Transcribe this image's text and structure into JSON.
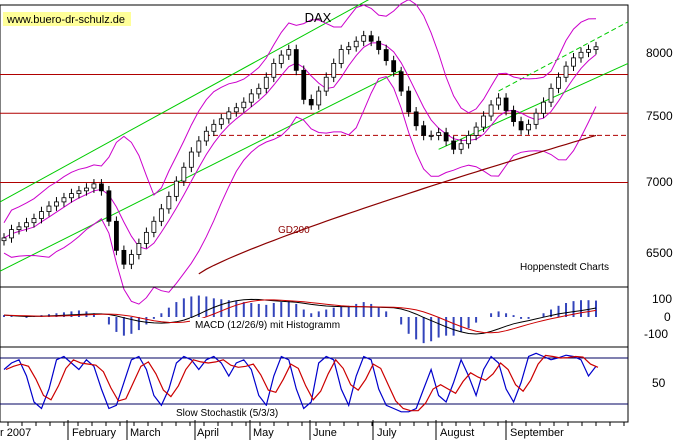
{
  "header": {
    "website": "www.buero-dr-schulz.de"
  },
  "chart_data": [
    {
      "type": "candlestick",
      "title": "DAX",
      "ylim": [
        6300,
        8300
      ],
      "y_ticks": [
        "8000",
        "7500",
        "7000",
        "6500"
      ],
      "x_labels": [
        "r 2007",
        "February",
        "March",
        "April",
        "May",
        "June",
        "July",
        "August",
        "September"
      ],
      "annotations": {
        "gd200": "GD200",
        "source": "Hoppenstedt Charts"
      },
      "horizontal_levels": [
        {
          "value": 7820,
          "color": "#b00000",
          "style": "solid"
        },
        {
          "value": 7540,
          "color": "#b00000",
          "style": "solid"
        },
        {
          "value": 7380,
          "color": "#b00000",
          "style": "dashed"
        },
        {
          "value": 7040,
          "color": "#b00000",
          "style": "solid"
        }
      ],
      "series": [
        {
          "values": [
            6640,
            6700,
            6720,
            6750,
            6780,
            6830,
            6870,
            6900,
            6930,
            6960,
            6980,
            7000,
            7030,
            6980,
            6760,
            6550,
            6450,
            6520,
            6600,
            6680,
            6760,
            6850,
            6940,
            7050,
            7150,
            7260,
            7340,
            7410,
            7460,
            7500,
            7550,
            7580,
            7620,
            7680,
            7720,
            7800,
            7900,
            7960,
            8000,
            7850,
            7640,
            7600,
            7700,
            7800,
            7900,
            8000,
            8020,
            8060,
            8100,
            8060,
            8000,
            7920,
            7840,
            7700,
            7550,
            7450,
            7380,
            7380,
            7400,
            7340,
            7280,
            7320,
            7380,
            7440,
            7520,
            7600,
            7650,
            7560,
            7480,
            7420,
            7460,
            7540,
            7620,
            7720,
            7800,
            7880,
            7940,
            7980,
            8000,
            8020
          ]
        },
        {
          "color": "#cc00cc"
        },
        {
          "color": "#8b0000"
        },
        {
          "color": "#00cc00"
        }
      ]
    },
    {
      "type": "histogram",
      "title": "MACD (12/26/9) mit Histogramm",
      "ylim": [
        -150,
        150
      ],
      "y_ticks": [
        "100",
        "0",
        "-100"
      ],
      "series": [
        {
          "values": [
            10,
            5,
            0,
            -5,
            5,
            10,
            15,
            20,
            25,
            30,
            35,
            30,
            20,
            0,
            -40,
            -80,
            -100,
            -90,
            -70,
            -40,
            -10,
            20,
            50,
            80,
            100,
            110,
            115,
            110,
            100,
            95,
            90,
            85,
            80,
            75,
            70,
            65,
            75,
            80,
            85,
            70,
            40,
            20,
            30,
            40,
            50,
            55,
            60,
            70,
            80,
            70,
            55,
            30,
            0,
            -40,
            -90,
            -120,
            -140,
            -130,
            -110,
            -100,
            -100,
            -80,
            -60,
            -30,
            0,
            20,
            30,
            20,
            10,
            -10,
            -10,
            0,
            20,
            40,
            60,
            75,
            85,
            90,
            90,
            88
          ]
        },
        {
          "color": "#000000"
        },
        {
          "color": "#cc0000"
        }
      ]
    },
    {
      "type": "line",
      "title": "Slow Stochastik (5/3/3)",
      "ylim": [
        0,
        100
      ],
      "y_ticks": [
        "50"
      ],
      "series": [
        {
          "color": "#0000cc",
          "values": [
            70,
            80,
            85,
            60,
            20,
            10,
            40,
            85,
            90,
            80,
            70,
            85,
            75,
            40,
            10,
            15,
            50,
            85,
            90,
            70,
            30,
            15,
            40,
            80,
            90,
            85,
            70,
            85,
            90,
            80,
            60,
            80,
            85,
            70,
            30,
            15,
            60,
            90,
            85,
            40,
            10,
            20,
            80,
            90,
            85,
            40,
            15,
            60,
            90,
            85,
            40,
            15,
            10,
            5,
            5,
            10,
            40,
            70,
            30,
            20,
            50,
            85,
            60,
            30,
            70,
            90,
            80,
            40,
            20,
            50,
            90,
            95,
            90,
            85,
            88,
            92,
            90,
            85,
            60,
            75
          ]
        },
        {
          "color": "#cc0000"
        }
      ]
    }
  ]
}
